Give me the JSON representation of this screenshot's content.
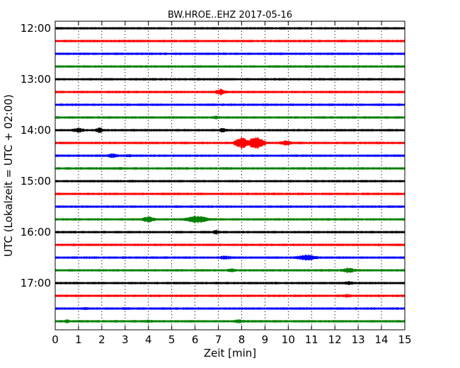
{
  "chart_data": {
    "type": "line",
    "title": "BW.HROE..EHZ 2017-05-16",
    "xlabel": "Zeit  [min]",
    "ylabel": "UTC (Lokalzeit = UTC + 02:00)",
    "xlim": [
      0,
      15
    ],
    "x_ticks": [
      0,
      1,
      2,
      3,
      4,
      5,
      6,
      7,
      8,
      9,
      10,
      11,
      12,
      13,
      14,
      15
    ],
    "x_tick_labels": [
      "0",
      "1",
      "2",
      "3",
      "4",
      "5",
      "6",
      "7",
      "8",
      "9",
      "10",
      "11",
      "12",
      "13",
      "14",
      "15"
    ],
    "y_tick_labels": [
      "12:00",
      "13:00",
      "14:00",
      "15:00",
      "16:00",
      "17:00"
    ],
    "y_tick_trace_index": [
      0,
      4,
      8,
      12,
      16,
      20
    ],
    "grid": "vertical-dotted",
    "trace_colors": [
      "#000000",
      "#ff0000",
      "#0000ff",
      "#008000"
    ],
    "traces": [
      {
        "start": "12:00",
        "events": []
      },
      {
        "start": "12:15",
        "events": []
      },
      {
        "start": "12:30",
        "events": []
      },
      {
        "start": "12:45",
        "events": []
      },
      {
        "start": "13:00",
        "events": []
      },
      {
        "start": "13:15",
        "events": [
          {
            "t": 7.1,
            "amp": 5,
            "dur": 0.4
          }
        ]
      },
      {
        "start": "13:30",
        "events": []
      },
      {
        "start": "13:45",
        "events": [
          {
            "t": 6.9,
            "amp": 3,
            "dur": 0.4
          }
        ]
      },
      {
        "start": "14:00",
        "events": [
          {
            "t": 1.0,
            "amp": 4,
            "dur": 0.5
          },
          {
            "t": 1.9,
            "amp": 5,
            "dur": 0.3
          },
          {
            "t": 7.2,
            "amp": 4,
            "dur": 0.4
          }
        ]
      },
      {
        "start": "14:15",
        "events": [
          {
            "t": 8.0,
            "amp": 9,
            "dur": 0.5
          },
          {
            "t": 8.6,
            "amp": 10,
            "dur": 0.6
          },
          {
            "t": 9.9,
            "amp": 4,
            "dur": 0.6
          }
        ]
      },
      {
        "start": "14:30",
        "events": [
          {
            "t": 2.5,
            "amp": 4,
            "dur": 0.5
          },
          {
            "t": 3.1,
            "amp": 3,
            "dur": 0.4
          }
        ]
      },
      {
        "start": "14:45",
        "events": [
          {
            "t": 2.8,
            "amp": 2.5,
            "dur": 0.5
          }
        ]
      },
      {
        "start": "15:00",
        "events": []
      },
      {
        "start": "15:15",
        "events": []
      },
      {
        "start": "15:30",
        "events": []
      },
      {
        "start": "15:45",
        "events": [
          {
            "t": 4.0,
            "amp": 5,
            "dur": 0.5
          },
          {
            "t": 6.1,
            "amp": 6,
            "dur": 0.9
          }
        ]
      },
      {
        "start": "16:00",
        "events": [
          {
            "t": 6.9,
            "amp": 4,
            "dur": 0.3
          }
        ]
      },
      {
        "start": "16:15",
        "events": []
      },
      {
        "start": "16:30",
        "events": [
          {
            "t": 7.3,
            "amp": 3.5,
            "dur": 0.7
          },
          {
            "t": 10.8,
            "amp": 5,
            "dur": 0.8
          }
        ]
      },
      {
        "start": "16:45",
        "events": [
          {
            "t": 7.6,
            "amp": 3,
            "dur": 0.6
          },
          {
            "t": 12.6,
            "amp": 4,
            "dur": 0.7
          }
        ]
      },
      {
        "start": "17:00",
        "events": [
          {
            "t": 12.6,
            "amp": 3,
            "dur": 0.6
          }
        ]
      },
      {
        "start": "17:15",
        "events": [
          {
            "t": 12.5,
            "amp": 3,
            "dur": 0.5
          }
        ]
      },
      {
        "start": "17:30",
        "events": [
          {
            "t": 1.3,
            "amp": 2.5,
            "dur": 0.6
          },
          {
            "t": 3.0,
            "amp": 2.5,
            "dur": 0.3
          },
          {
            "t": 12.9,
            "amp": 2,
            "dur": 0.3
          }
        ]
      },
      {
        "start": "17:45",
        "events": [
          {
            "t": 0.5,
            "amp": 3,
            "dur": 0.3
          },
          {
            "t": 4.0,
            "amp": 2.5,
            "dur": 0.6
          },
          {
            "t": 7.9,
            "amp": 3,
            "dur": 0.6
          }
        ]
      }
    ]
  }
}
